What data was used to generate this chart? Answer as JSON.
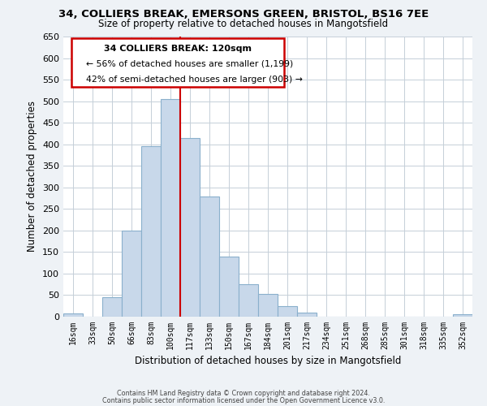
{
  "title": "34, COLLIERS BREAK, EMERSONS GREEN, BRISTOL, BS16 7EE",
  "subtitle": "Size of property relative to detached houses in Mangotsfield",
  "xlabel": "Distribution of detached houses by size in Mangotsfield",
  "ylabel": "Number of detached properties",
  "bar_color": "#c8d8ea",
  "bar_edge_color": "#8ab0cc",
  "bin_labels": [
    "16sqm",
    "33sqm",
    "50sqm",
    "66sqm",
    "83sqm",
    "100sqm",
    "117sqm",
    "133sqm",
    "150sqm",
    "167sqm",
    "184sqm",
    "201sqm",
    "217sqm",
    "234sqm",
    "251sqm",
    "268sqm",
    "285sqm",
    "301sqm",
    "318sqm",
    "335sqm",
    "352sqm"
  ],
  "bar_heights": [
    8,
    0,
    45,
    200,
    395,
    505,
    415,
    278,
    140,
    75,
    52,
    25,
    10,
    0,
    0,
    0,
    0,
    0,
    0,
    0,
    5
  ],
  "vline_x": 5.5,
  "vline_color": "#cc0000",
  "ylim": [
    0,
    650
  ],
  "yticks": [
    0,
    50,
    100,
    150,
    200,
    250,
    300,
    350,
    400,
    450,
    500,
    550,
    600,
    650
  ],
  "annotation_title": "34 COLLIERS BREAK: 120sqm",
  "annotation_line1": "← 56% of detached houses are smaller (1,199)",
  "annotation_line2": "42% of semi-detached houses are larger (903) →",
  "annotation_box_color": "#ffffff",
  "annotation_box_edge": "#cc0000",
  "footer1": "Contains HM Land Registry data © Crown copyright and database right 2024.",
  "footer2": "Contains public sector information licensed under the Open Government Licence v3.0.",
  "background_color": "#eef2f6",
  "plot_bg_color": "#ffffff",
  "grid_color": "#c5cfd8"
}
